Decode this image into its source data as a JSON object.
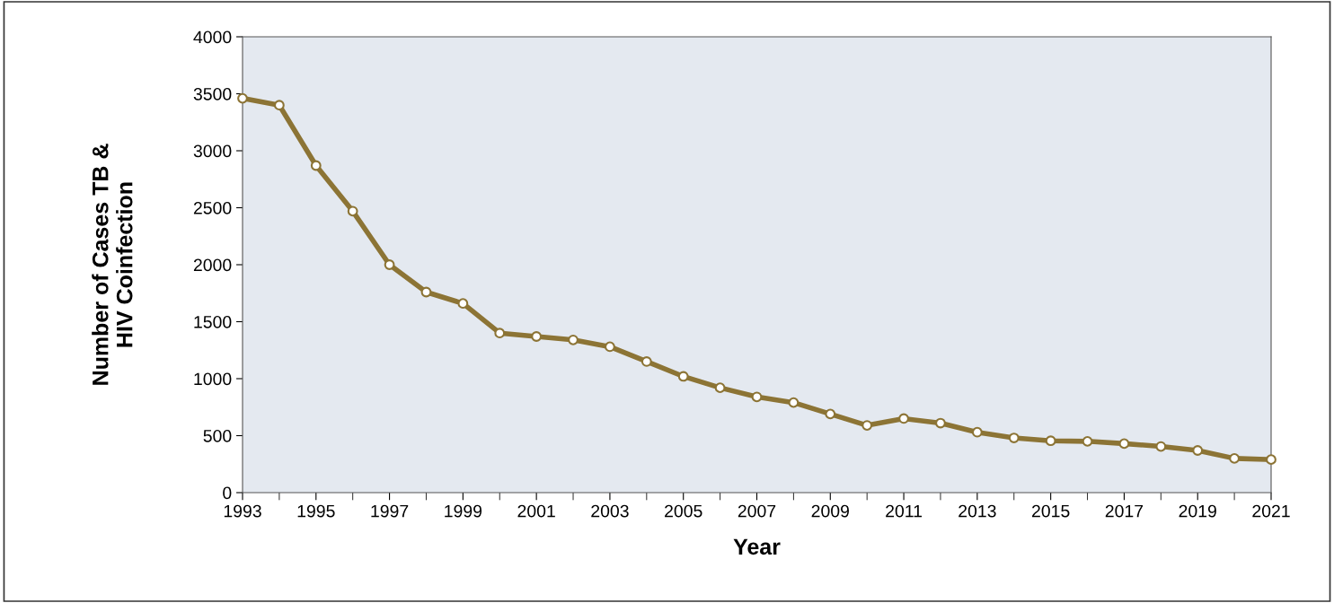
{
  "chart_data": {
    "type": "line",
    "xlabel": "Year",
    "ylabel": "Number of Cases TB &\nHIV Coinfection",
    "x": [
      1993,
      1994,
      1995,
      1996,
      1997,
      1998,
      1999,
      2000,
      2001,
      2002,
      2003,
      2004,
      2005,
      2006,
      2007,
      2008,
      2009,
      2010,
      2011,
      2012,
      2013,
      2014,
      2015,
      2016,
      2017,
      2018,
      2019,
      2020,
      2021
    ],
    "series": [
      {
        "color": "#8c7435",
        "values": [
          3460,
          3400,
          2870,
          2470,
          2000,
          1760,
          1660,
          1400,
          1370,
          1340,
          1280,
          1150,
          1020,
          920,
          840,
          790,
          690,
          590,
          650,
          610,
          530,
          480,
          455,
          450,
          430,
          405,
          370,
          300,
          290
        ]
      }
    ],
    "xlim": [
      1993,
      2021
    ],
    "xticks": [
      1993,
      1995,
      1997,
      1999,
      2001,
      2003,
      2005,
      2007,
      2009,
      2011,
      2013,
      2015,
      2017,
      2019,
      2021
    ],
    "ylim": [
      0,
      4000
    ],
    "yticks": [
      0,
      500,
      1000,
      1500,
      2000,
      2500,
      3000,
      3500,
      4000
    ],
    "grid": false,
    "legend": false,
    "marker": "circle",
    "line_style": "solid"
  }
}
